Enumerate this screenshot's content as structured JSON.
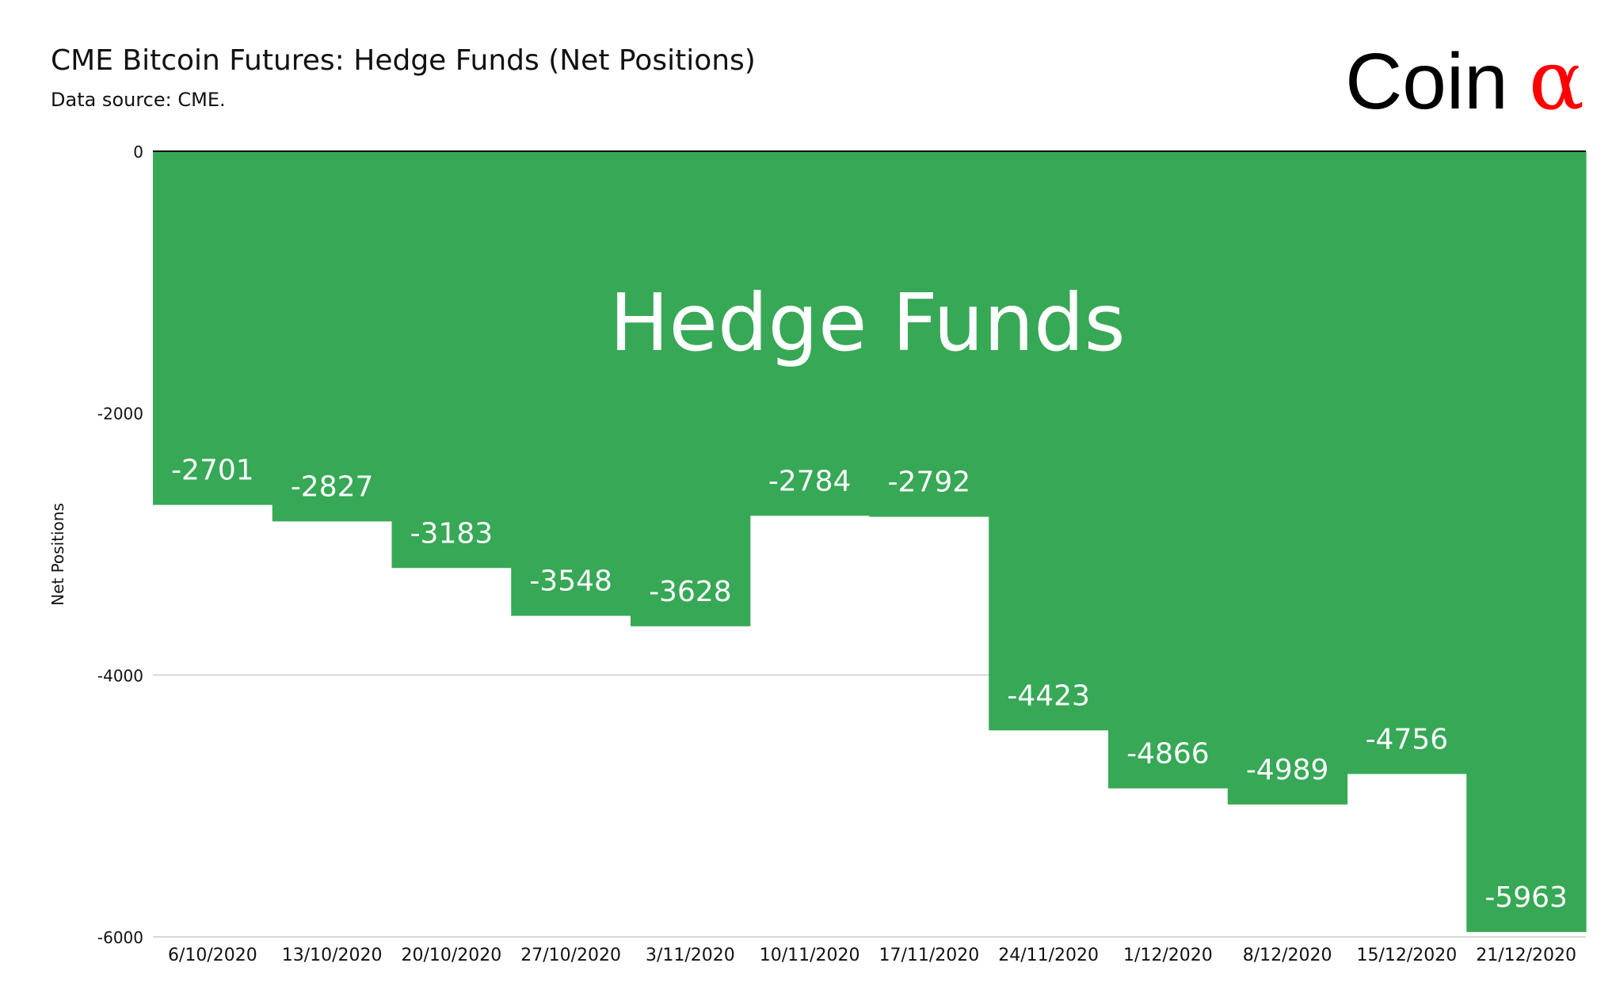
{
  "header": {
    "title": "CME Bitcoin Futures: Hedge Funds (Net Positions)",
    "subtitle": "Data source: CME."
  },
  "logo": {
    "word": "Coin",
    "symbol": "α",
    "symbol_color": "#ff0000"
  },
  "chart_data": {
    "type": "bar",
    "title": "CME Bitcoin Futures: Hedge Funds (Net Positions)",
    "annotation": "Hedge Funds",
    "xlabel": "",
    "ylabel": "Net Positions",
    "ylim": [
      -6000,
      0
    ],
    "yticks": [
      0,
      -2000,
      -4000,
      -6000
    ],
    "grid": true,
    "bar_color": "#37a856",
    "categories": [
      "6/10/2020",
      "13/10/2020",
      "20/10/2020",
      "27/10/2020",
      "3/11/2020",
      "10/11/2020",
      "17/11/2020",
      "24/11/2020",
      "1/12/2020",
      "8/12/2020",
      "15/12/2020",
      "21/12/2020"
    ],
    "values": [
      -2701,
      -2827,
      -3183,
      -3548,
      -3628,
      -2784,
      -2792,
      -4423,
      -4866,
      -4989,
      -4756,
      -5963
    ]
  }
}
